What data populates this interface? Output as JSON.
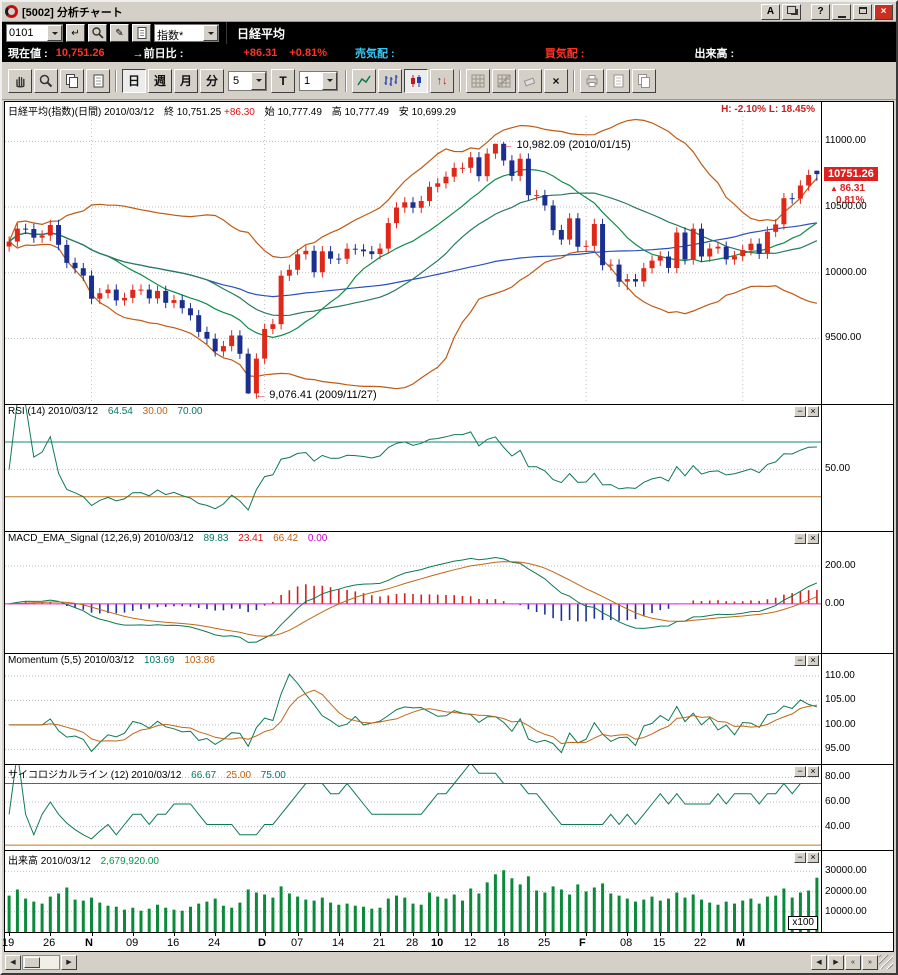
{
  "window": {
    "title": "[5002] 分析チャート",
    "buttons": {
      "a": "A",
      "help": "?"
    }
  },
  "command_bar": {
    "code_value": "0101",
    "category_value": "指数*",
    "instrument": "日経平均"
  },
  "quote_bar": {
    "current_label": "現在値 :",
    "current_value": "10,751.26",
    "change_label": "→前日比 :",
    "change_value": "+86.31",
    "change_pct": "+0.81%",
    "ask_label": "売気配 :",
    "bid_label": "買気配 :",
    "volume_label": "出来高 :"
  },
  "toolbar": {
    "period_day": "日",
    "period_week": "週",
    "period_month": "月",
    "period_minute": "分",
    "interval_value": "5",
    "tick_label": "T",
    "count_value": "1"
  },
  "icons": {
    "close": "×",
    "minimize": "−",
    "help": "?",
    "enter": "↵",
    "pencil": "✎",
    "arrow_left": "← ",
    "up_triangle": "▲",
    "left": "◀",
    "right": "▶",
    "jump_end": "»",
    "jump_start": "«",
    "delete": "×"
  },
  "colors": {
    "up": "#e02818",
    "down": "#1a2f8f",
    "boll": "#c05a14",
    "ma_green1": "#0e8c4a",
    "ma_green2": "#2a7a5e",
    "ma_blue": "#2b50c0",
    "ind_green": "#0e7a50",
    "ind_orange": "#c06818",
    "hist_pos": "#d42020",
    "hist_neg": "#20309a",
    "magenta": "#dd22dd",
    "teal_line": "#108878",
    "orange_line": "#c07820",
    "vol": "#0a8a3a",
    "grid": "#bdbdbd",
    "accent_red": "#dd2020"
  },
  "chart_data": {
    "type": "candlestick-multi-panel",
    "last_price": 10751.26,
    "month_lines": [
      10,
      31,
      52,
      70,
      89
    ],
    "x_axis": [
      {
        "label": "19",
        "i": 0,
        "bold": false
      },
      {
        "label": "26",
        "i": 5,
        "bold": false
      },
      {
        "label": "N",
        "i": 10,
        "bold": true
      },
      {
        "label": "09",
        "i": 15,
        "bold": false
      },
      {
        "label": "16",
        "i": 20,
        "bold": false
      },
      {
        "label": "24",
        "i": 25,
        "bold": false
      },
      {
        "label": "D",
        "i": 31,
        "bold": true
      },
      {
        "label": "07",
        "i": 35,
        "bold": false
      },
      {
        "label": "14",
        "i": 40,
        "bold": false
      },
      {
        "label": "21",
        "i": 45,
        "bold": false
      },
      {
        "label": "28",
        "i": 49,
        "bold": false
      },
      {
        "label": "10",
        "i": 52,
        "bold": true
      },
      {
        "label": "12",
        "i": 56,
        "bold": false
      },
      {
        "label": "18",
        "i": 60,
        "bold": false
      },
      {
        "label": "25",
        "i": 65,
        "bold": false
      },
      {
        "label": "F",
        "i": 70,
        "bold": true
      },
      {
        "label": "08",
        "i": 75,
        "bold": false
      },
      {
        "label": "15",
        "i": 79,
        "bold": false
      },
      {
        "label": "22",
        "i": 84,
        "bold": false
      },
      {
        "label": "M",
        "i": 89,
        "bold": true
      }
    ],
    "candles": [
      [
        10200,
        10277,
        10160,
        10237
      ],
      [
        10237,
        10376,
        10197,
        10336
      ],
      [
        10336,
        10373,
        10293,
        10333
      ],
      [
        10333,
        10373,
        10227,
        10267
      ],
      [
        10267,
        10323,
        10227,
        10283
      ],
      [
        10283,
        10403,
        10243,
        10363
      ],
      [
        10363,
        10403,
        10172,
        10212
      ],
      [
        10212,
        10252,
        10035,
        10075
      ],
      [
        10075,
        10115,
        9994,
        10034
      ],
      [
        10034,
        10074,
        9938,
        9978
      ],
      [
        9978,
        10018,
        9762,
        9802
      ],
      [
        9802,
        9884,
        9762,
        9844
      ],
      [
        9844,
        9911,
        9804,
        9871
      ],
      [
        9871,
        9911,
        9749,
        9789
      ],
      [
        9789,
        9848,
        9749,
        9808
      ],
      [
        9808,
        9910,
        9768,
        9870
      ],
      [
        9870,
        9911,
        9830,
        9871
      ],
      [
        9871,
        9911,
        9764,
        9804
      ],
      [
        9804,
        9901,
        9764,
        9861
      ],
      [
        9861,
        9901,
        9730,
        9770
      ],
      [
        9770,
        9831,
        9730,
        9791
      ],
      [
        9791,
        9831,
        9689,
        9729
      ],
      [
        9729,
        9769,
        9636,
        9676
      ],
      [
        9676,
        9716,
        9509,
        9549
      ],
      [
        9549,
        9589,
        9457,
        9497
      ],
      [
        9497,
        9537,
        9361,
        9401
      ],
      [
        9401,
        9481,
        9361,
        9441
      ],
      [
        9441,
        9562,
        9401,
        9522
      ],
      [
        9522,
        9562,
        9343,
        9383
      ],
      [
        9383,
        9423,
        9076,
        9081
      ],
      [
        9081,
        9386,
        9041,
        9346
      ],
      [
        9346,
        9612,
        9306,
        9572
      ],
      [
        9572,
        9648,
        9532,
        9608
      ],
      [
        9608,
        10017,
        9568,
        9977
      ],
      [
        9977,
        10062,
        9937,
        10022
      ],
      [
        10022,
        10180,
        9982,
        10140
      ],
      [
        10140,
        10207,
        10100,
        10167
      ],
      [
        10167,
        10207,
        9964,
        10004
      ],
      [
        10004,
        10203,
        9964,
        10163
      ],
      [
        10163,
        10203,
        10067,
        10107
      ],
      [
        10107,
        10146,
        10066,
        10106
      ],
      [
        10106,
        10223,
        10066,
        10183
      ],
      [
        10183,
        10217,
        10137,
        10177
      ],
      [
        10177,
        10217,
        10123,
        10163
      ],
      [
        10163,
        10203,
        10102,
        10142
      ],
      [
        10142,
        10224,
        10102,
        10184
      ],
      [
        10184,
        10418,
        10144,
        10378
      ],
      [
        10378,
        10536,
        10338,
        10496
      ],
      [
        10496,
        10576,
        10456,
        10536
      ],
      [
        10536,
        10576,
        10454,
        10494
      ],
      [
        10494,
        10586,
        10454,
        10546
      ],
      [
        10546,
        10694,
        10506,
        10654
      ],
      [
        10654,
        10721,
        10614,
        10681
      ],
      [
        10681,
        10771,
        10641,
        10731
      ],
      [
        10731,
        10838,
        10691,
        10798
      ],
      [
        10798,
        10839,
        10758,
        10799
      ],
      [
        10799,
        10919,
        10759,
        10879
      ],
      [
        10879,
        10919,
        10695,
        10735
      ],
      [
        10735,
        10947,
        10695,
        10907
      ],
      [
        10907,
        10982,
        10867,
        10982
      ],
      [
        10982,
        10995,
        10815,
        10855
      ],
      [
        10855,
        10895,
        10697,
        10737
      ],
      [
        10737,
        10908,
        10697,
        10868
      ],
      [
        10868,
        10908,
        10550,
        10590
      ],
      [
        10590,
        10631,
        10550,
        10591
      ],
      [
        10591,
        10631,
        10472,
        10512
      ],
      [
        10512,
        10552,
        10285,
        10325
      ],
      [
        10325,
        10365,
        10212,
        10252
      ],
      [
        10252,
        10454,
        10212,
        10414
      ],
      [
        10414,
        10454,
        10158,
        10198
      ],
      [
        10198,
        10245,
        10158,
        10205
      ],
      [
        10205,
        10411,
        10165,
        10371
      ],
      [
        10371,
        10411,
        10017,
        10057
      ],
      [
        10057,
        10102,
        10017,
        10062
      ],
      [
        10062,
        10102,
        9892,
        9932
      ],
      [
        9932,
        9991,
        9867,
        9951
      ],
      [
        9951,
        9991,
        9893,
        9933
      ],
      [
        9933,
        10074,
        9893,
        10034
      ],
      [
        10034,
        10132,
        9994,
        10092
      ],
      [
        10092,
        10163,
        10052,
        10123
      ],
      [
        10123,
        10163,
        9996,
        10036
      ],
      [
        10036,
        10346,
        9996,
        10306
      ],
      [
        10306,
        10346,
        10061,
        10101
      ],
      [
        10101,
        10375,
        10061,
        10335
      ],
      [
        10335,
        10375,
        10083,
        10123
      ],
      [
        10123,
        10224,
        10083,
        10184
      ],
      [
        10184,
        10238,
        10144,
        10198
      ],
      [
        10198,
        10238,
        10061,
        10101
      ],
      [
        10101,
        10166,
        10061,
        10126
      ],
      [
        10126,
        10212,
        10086,
        10172
      ],
      [
        10172,
        10261,
        10132,
        10221
      ],
      [
        10221,
        10261,
        10105,
        10145
      ],
      [
        10145,
        10352,
        10105,
        10312
      ],
      [
        10312,
        10408,
        10272,
        10368
      ],
      [
        10368,
        10607,
        10328,
        10567
      ],
      [
        10567,
        10607,
        10524,
        10564
      ],
      [
        10564,
        10704,
        10524,
        10664
      ],
      [
        10664,
        10784,
        10624,
        10744
      ],
      [
        10777,
        10777,
        10699,
        10751
      ]
    ],
    "volumes": [
      18000,
      21000,
      16500,
      15000,
      14000,
      17500,
      19000,
      22000,
      16000,
      15500,
      17000,
      14500,
      13000,
      12500,
      11000,
      12000,
      10500,
      11500,
      13500,
      12000,
      11000,
      10500,
      12500,
      14000,
      15000,
      16500,
      13000,
      12000,
      14500,
      21000,
      19500,
      18500,
      17000,
      22500,
      19000,
      17500,
      16000,
      15500,
      17000,
      14500,
      13500,
      14000,
      13000,
      12500,
      11500,
      12000,
      16500,
      18000,
      17000,
      14000,
      13500,
      19500,
      17500,
      16500,
      18500,
      15500,
      21500,
      19000,
      24500,
      28500,
      30500,
      26500,
      23500,
      27500,
      20500,
      19500,
      22500,
      21000,
      18500,
      23500,
      20000,
      22000,
      24000,
      19000,
      18000,
      16500,
      15000,
      16000,
      17500,
      15500,
      16500,
      19500,
      17000,
      18500,
      16000,
      14500,
      13500,
      15000,
      14000,
      15500,
      16500,
      14000,
      17500,
      18000,
      21500,
      17000,
      19500,
      20500,
      26799
    ],
    "panels": {
      "main": {
        "header": {
          "title": "日経平均(指数)(日間) 2010/03/12",
          "close_label": "終",
          "close": "10,751.25",
          "change": "+86.30",
          "open_label": "始",
          "open": "10,777.49",
          "high_label": "高",
          "high": "10,777.49",
          "low_label": "安",
          "low": "10,699.29"
        },
        "hl_stats": "H: -2.10%   L: 18.45%",
        "domain": [
          9000,
          11300
        ],
        "axis": [
          {
            "text": "11000.00",
            "v": 11000
          },
          {
            "text": "10500.00",
            "v": 10500
          },
          {
            "text": "10000.00",
            "v": 10000
          },
          {
            "text": "9500.00",
            "v": 9500
          }
        ],
        "price_tag": {
          "value": "10751.26",
          "change": "86.31",
          "pct": "0.81%"
        },
        "annotations": [
          {
            "text": "10,982.09 (2010/01/15)",
            "bar": 59,
            "price": 10982
          },
          {
            "text": "9,076.41 (2009/11/27)",
            "bar": 29,
            "price": 9076
          }
        ],
        "ma_periods": {
          "bollinger": 25,
          "green_fast": 13,
          "green_slow": 25,
          "blue": 60
        }
      },
      "rsi": {
        "title": "RSI (14) 2010/03/12",
        "values": [
          "64.54",
          "30.00",
          "70.00"
        ],
        "period": 14,
        "domain": [
          5,
          97
        ],
        "axis": [
          {
            "text": "50.00",
            "v": 50
          }
        ],
        "refs": [
          {
            "v": 70,
            "c": "teal"
          },
          {
            "v": 30,
            "c": "orange"
          }
        ]
      },
      "macd": {
        "title": "MACD_EMA_Signal (12,26,9) 2010/03/12",
        "values": [
          "89.83",
          "23.41",
          "66.42",
          "0.00"
        ],
        "params": [
          12,
          26,
          9
        ],
        "domain": [
          -260,
          380
        ],
        "axis": [
          {
            "text": "200.00",
            "v": 200
          },
          {
            "text": "0.00",
            "v": 0
          }
        ]
      },
      "momentum": {
        "title": "Momentum (5,5) 2010/03/12",
        "values": [
          "103.69",
          "103.86"
        ],
        "params": [
          5,
          5
        ],
        "domain": [
          92,
          114.5
        ],
        "axis": [
          {
            "text": "110.00",
            "v": 110
          },
          {
            "text": "105.00",
            "v": 105
          },
          {
            "text": "100.00",
            "v": 100
          },
          {
            "text": "95.00",
            "v": 95
          }
        ]
      },
      "psych": {
        "title": "サイコロジカルライン (12) 2010/03/12",
        "values": [
          "66.67",
          "25.00",
          "75.00"
        ],
        "period": 12,
        "domain": [
          21,
          90
        ],
        "axis": [
          {
            "text": "80.00",
            "v": 80
          },
          {
            "text": "60.00",
            "v": 60
          },
          {
            "text": "40.00",
            "v": 40
          }
        ],
        "refs": [
          {
            "v": 75,
            "c": "teal"
          },
          {
            "v": 25,
            "c": "orange"
          }
        ]
      },
      "volume": {
        "title": "出来高 2010/03/12",
        "value": "2,679,920.00",
        "domain": [
          0,
          40000
        ],
        "axis": [
          {
            "text": "30000.00",
            "v": 30000
          },
          {
            "text": "20000.00",
            "v": 20000
          },
          {
            "text": "10000.00",
            "v": 10000
          }
        ],
        "unit": "x100"
      }
    }
  }
}
